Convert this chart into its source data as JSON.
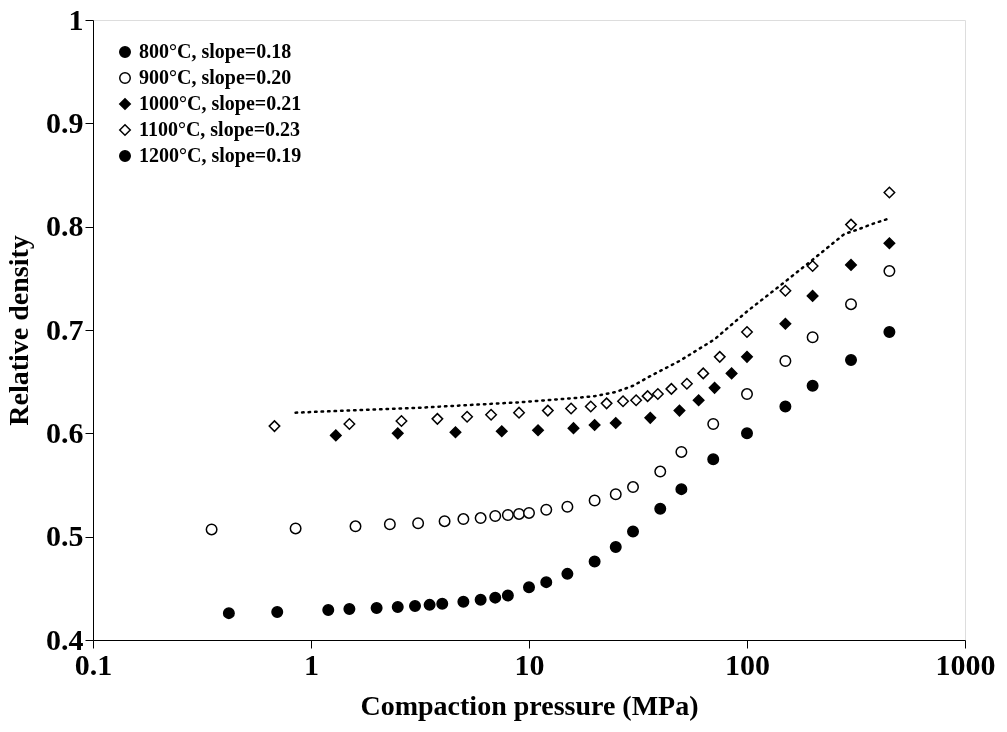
{
  "chart_data": {
    "type": "scatter",
    "xlabel": "Compaction pressure (MPa)",
    "ylabel": "Relative density",
    "log": "x",
    "xlim": [
      0.1,
      1000
    ],
    "xticks": [
      0.1,
      1,
      10,
      100,
      1000
    ],
    "ylim": [
      0.4,
      1
    ],
    "yticks": [
      0.4,
      0.5,
      0.6,
      0.7,
      0.8,
      0.9,
      1
    ],
    "legend": "top left",
    "grid": false,
    "series": [
      {
        "name": "800°C,  slope=0.18",
        "color": "#000000",
        "marker": "circle",
        "x": [
          0.42,
          0.7,
          1.2,
          1.5,
          2,
          2.5,
          3,
          3.5,
          4,
          5,
          6,
          7,
          8,
          10,
          12,
          15,
          20,
          25,
          30,
          40,
          50,
          70,
          100,
          150,
          200,
          300,
          450
        ],
        "values": [
          0.426,
          0.427,
          0.429,
          0.43,
          0.431,
          0.432,
          0.433,
          0.434,
          0.435,
          0.437,
          0.439,
          0.441,
          0.443,
          0.451,
          0.456,
          0.464,
          0.476,
          0.49,
          0.505,
          0.527,
          0.546,
          0.575,
          0.6,
          0.626,
          0.646,
          0.671,
          0.698
        ]
      },
      {
        "name": "900°C,  slope=0.20",
        "color": "#ffffff",
        "marker": "circle",
        "x": [
          0.35,
          0.85,
          1.6,
          2.3,
          3.1,
          4.1,
          5,
          6,
          7,
          8,
          9,
          10,
          12,
          15,
          20,
          25,
          30,
          40,
          50,
          70,
          100,
          150,
          200,
          300,
          450
        ],
        "values": [
          0.507,
          0.508,
          0.51,
          0.512,
          0.513,
          0.515,
          0.517,
          0.518,
          0.52,
          0.521,
          0.522,
          0.523,
          0.526,
          0.529,
          0.535,
          0.541,
          0.548,
          0.563,
          0.582,
          0.609,
          0.638,
          0.67,
          0.693,
          0.725,
          0.757
        ]
      },
      {
        "name": "1000°C,  slope=0.21",
        "color": "#000000",
        "marker": "diamond",
        "x": [
          1.3,
          2.5,
          4.6,
          7.5,
          11,
          16,
          20,
          25,
          36,
          49,
          60,
          71,
          85,
          100,
          150,
          200,
          300,
          450
        ],
        "values": [
          0.598,
          0.6,
          0.601,
          0.602,
          0.603,
          0.605,
          0.608,
          0.61,
          0.615,
          0.622,
          0.632,
          0.644,
          0.658,
          0.674,
          0.706,
          0.733,
          0.763,
          0.784
        ]
      },
      {
        "name": "1100°C,  slope=0.23",
        "color": "#ffffff",
        "marker": "diamond",
        "x": [
          0.68,
          1.5,
          2.6,
          3.8,
          5.2,
          6.7,
          9,
          12.2,
          15.6,
          19.2,
          22.7,
          27,
          31,
          35,
          39,
          45,
          53,
          63,
          75,
          100,
          150,
          200,
          300,
          450
        ],
        "values": [
          0.607,
          0.609,
          0.612,
          0.614,
          0.616,
          0.618,
          0.62,
          0.622,
          0.624,
          0.626,
          0.629,
          0.631,
          0.632,
          0.636,
          0.638,
          0.643,
          0.648,
          0.658,
          0.674,
          0.698,
          0.738,
          0.762,
          0.802,
          0.833
        ]
      },
      {
        "name": "1200°C,  slope=0.19",
        "color": "#000000",
        "type": "line",
        "line_style": "dotted",
        "marker": "none",
        "x": [
          0.85,
          1.9,
          3.3,
          6,
          9,
          12,
          16,
          20,
          25,
          30,
          35,
          49,
          71,
          100,
          150,
          200,
          280,
          320,
          380,
          450
        ],
        "values": [
          0.62,
          0.623,
          0.625,
          0.628,
          0.63,
          0.632,
          0.634,
          0.636,
          0.64,
          0.646,
          0.654,
          0.67,
          0.691,
          0.718,
          0.747,
          0.768,
          0.793,
          0.797,
          0.803,
          0.808
        ]
      }
    ]
  }
}
